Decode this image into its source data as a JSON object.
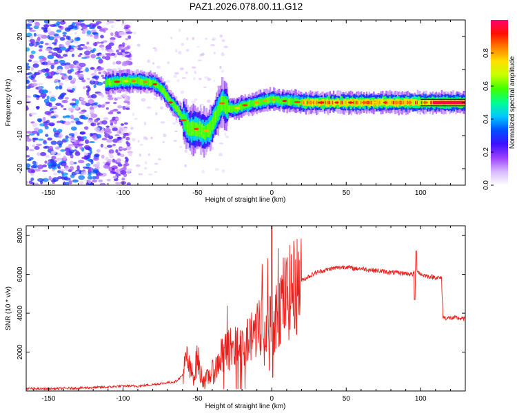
{
  "title": "PAZ1.2026.078.00.11.G12",
  "chart_data": [
    {
      "type": "heatmap",
      "name": "spectrogram",
      "xlabel": "Height of straight line (km)",
      "ylabel": "Frequency (Hz)",
      "xlim": [
        -165,
        130
      ],
      "ylim": [
        -25,
        25
      ],
      "xticks": [
        -150,
        -100,
        -50,
        0,
        50,
        100
      ],
      "xtick_labels": [
        "-150",
        "-100",
        "-50",
        "0",
        "50",
        "100"
      ],
      "yticks": [
        -20,
        -10,
        0,
        10,
        20
      ],
      "ytick_labels": [
        "-20",
        "-10",
        "0",
        "10",
        "20"
      ],
      "ridge": {
        "x": [
          -110,
          -100,
          -90,
          -80,
          -74,
          -68,
          -64,
          -60,
          -56,
          -50,
          -46,
          -42,
          -38,
          -34,
          -30,
          -25,
          -20,
          -15,
          -10,
          -5,
          0,
          5,
          10,
          20,
          30,
          50,
          70,
          90,
          100,
          110,
          130
        ],
        "y": [
          6,
          6.5,
          6.5,
          6,
          4,
          0,
          -2,
          -5,
          -8,
          -8,
          -9,
          -8,
          -4,
          0,
          -1.5,
          -2,
          -1,
          -0.5,
          0,
          0.5,
          1,
          0.5,
          0.5,
          0,
          0,
          0,
          0,
          0,
          0,
          0,
          0
        ]
      },
      "colorbar": {
        "label": "Normalized spectral amplitude",
        "range": [
          0,
          1
        ],
        "ticks": [
          0.0,
          0.2,
          0.4,
          0.6,
          0.8
        ],
        "tick_labels": [
          "0.0",
          "0.2",
          "0.4",
          "0.6",
          "0.8"
        ],
        "colormap": [
          "#ffffff",
          "#d8b8ff",
          "#9a40ff",
          "#3b10ff",
          "#0050ff",
          "#00c8ff",
          "#00ff90",
          "#40ff00",
          "#c8ff00",
          "#ffe000",
          "#ff8000",
          "#ff1000",
          "#ff0070"
        ]
      }
    },
    {
      "type": "line",
      "name": "snr",
      "xlabel": "Height of straight line (km)",
      "ylabel": "SNR (10 * v/v)",
      "xlim": [
        -165,
        130
      ],
      "ylim": [
        0,
        8500
      ],
      "xticks": [
        -150,
        -100,
        -50,
        0,
        50,
        100
      ],
      "xtick_labels": [
        "-150",
        "-100",
        "-50",
        "0",
        "50",
        "100"
      ],
      "yticks": [
        2000,
        4000,
        6000,
        8000
      ],
      "ytick_labels": [
        "2000",
        "4000",
        "6000",
        "8000"
      ],
      "color": "#e8201c",
      "series": [
        {
          "name": "SNR",
          "x": [
            -165,
            -150,
            -130,
            -110,
            -100,
            -90,
            -80,
            -70,
            -65,
            -60,
            -57,
            -55,
            -52,
            -50,
            -48,
            -45,
            -42,
            -38,
            -35,
            -30,
            -25,
            -20,
            -15,
            -10,
            -5,
            -2,
            0,
            2,
            5,
            10,
            15,
            20,
            25,
            30,
            35,
            40,
            45,
            50,
            55,
            60,
            70,
            80,
            90,
            95,
            97,
            100,
            105,
            110,
            114,
            115,
            118,
            120,
            125,
            130
          ],
          "y": [
            120,
            110,
            150,
            200,
            260,
            250,
            330,
            430,
            470,
            800,
            1700,
            1000,
            800,
            1800,
            900,
            500,
            800,
            1100,
            1700,
            2000,
            2300,
            2300,
            2600,
            3400,
            3800,
            3600,
            3200,
            3800,
            4500,
            4900,
            5300,
            5700,
            5900,
            6100,
            6200,
            6300,
            6350,
            6400,
            6300,
            6300,
            6200,
            6100,
            6050,
            6000,
            6300,
            6000,
            5900,
            5850,
            5800,
            3800,
            3750,
            3750,
            3750,
            3700
          ]
        }
      ]
    }
  ]
}
